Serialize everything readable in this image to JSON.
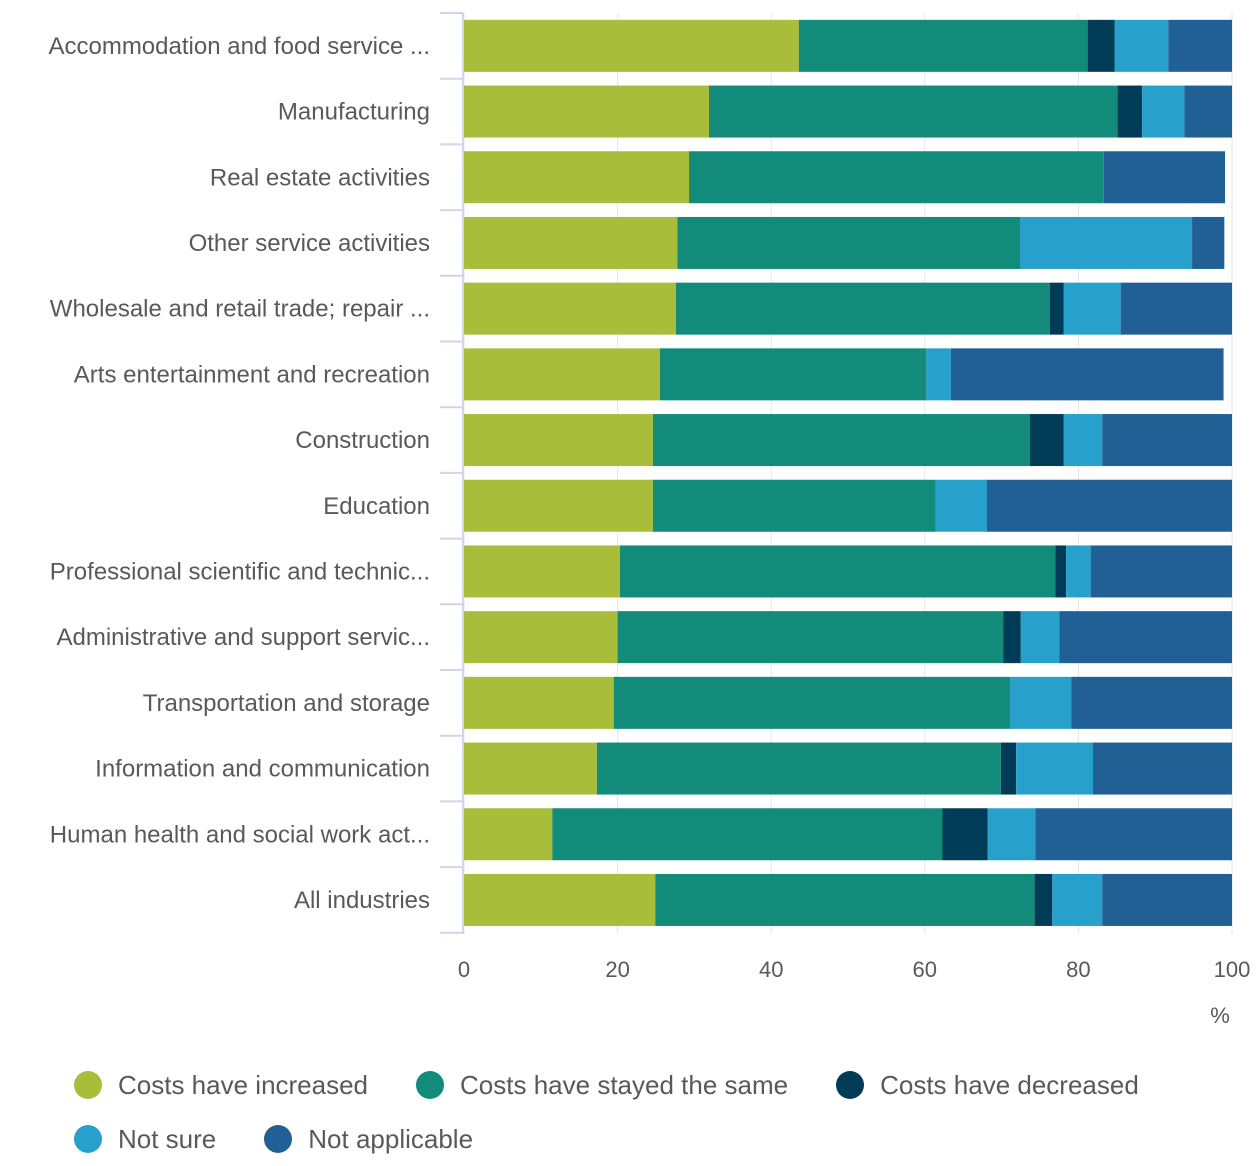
{
  "chart_data": {
    "type": "bar",
    "orientation": "horizontal",
    "stacked": true,
    "categories": [
      "Accommodation and food service ...",
      "Manufacturing",
      "Real estate activities",
      "Other service activities",
      "Wholesale and retail trade; repair ...",
      "Arts entertainment and recreation",
      "Construction",
      "Education",
      "Professional scientific and technic...",
      "Administrative and support servic...",
      "Transportation and storage",
      "Information and communication",
      "Human health and social work act...",
      "All industries"
    ],
    "series": [
      {
        "name": "Costs have increased",
        "color": "#a8bd3a",
        "values": [
          43.6,
          31.9,
          29.3,
          27.8,
          27.6,
          25.5,
          24.6,
          24.6,
          20.3,
          20.0,
          19.5,
          17.3,
          11.5,
          24.9
        ]
      },
      {
        "name": "Costs have stayed the same",
        "color": "#128b7a",
        "values": [
          37.6,
          53.2,
          54.0,
          44.6,
          48.7,
          34.7,
          49.1,
          36.8,
          56.7,
          50.2,
          51.6,
          52.6,
          50.8,
          49.4
        ]
      },
      {
        "name": "Costs have decreased",
        "color": "#003c57",
        "values": [
          3.5,
          3.2,
          0,
          0,
          1.8,
          0,
          4.4,
          0,
          1.4,
          2.3,
          0,
          2.0,
          5.9,
          2.3
        ]
      },
      {
        "name": "Not sure",
        "color": "#27a0cc",
        "values": [
          7.0,
          5.5,
          0,
          22.4,
          7.4,
          3.2,
          5.0,
          6.7,
          3.2,
          5.0,
          8.0,
          10.0,
          6.2,
          6.5
        ]
      },
      {
        "name": "Not applicable",
        "color": "#206095",
        "values": [
          8.3,
          6.2,
          15.8,
          4.2,
          14.5,
          35.5,
          16.9,
          31.9,
          18.4,
          22.5,
          20.9,
          18.1,
          25.6,
          16.9
        ]
      }
    ],
    "x": {
      "ticks": [
        "0",
        "20",
        "40",
        "60",
        "80",
        "100"
      ],
      "range": [
        0,
        100
      ],
      "unit": "%"
    },
    "grid": true,
    "legend_position": "bottom"
  }
}
